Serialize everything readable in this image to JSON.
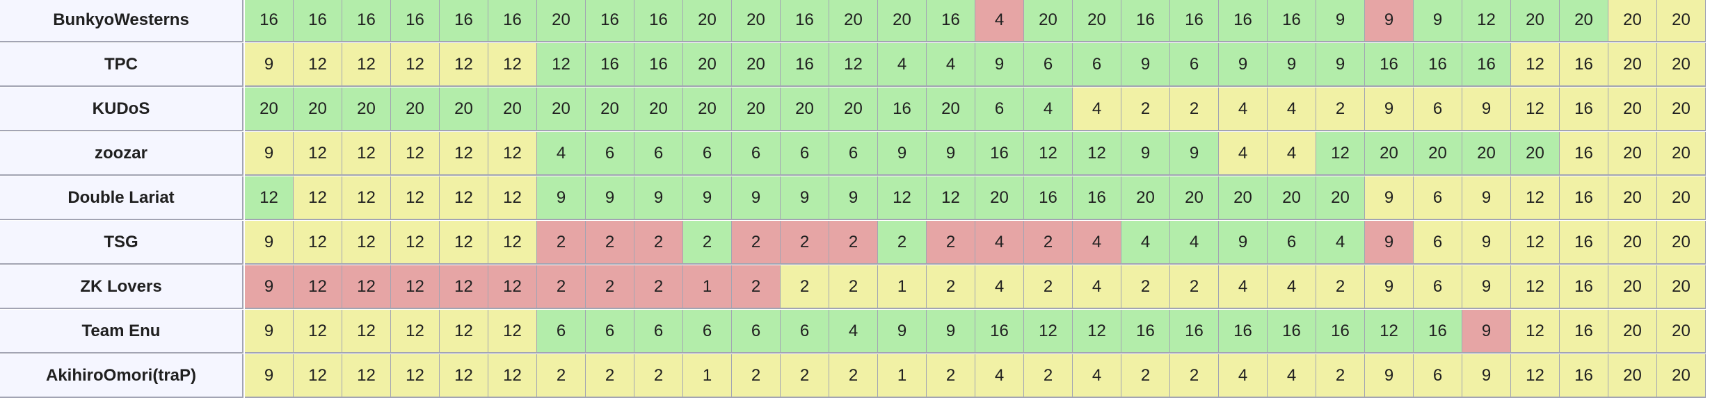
{
  "colors": {
    "green": "#b3edaa",
    "yellow": "#f1f1a5",
    "red": "#e6a5a5",
    "team_bg": "#f5f6ff",
    "border": "#a2a4b3"
  },
  "rows": [
    {
      "team": "BunkyoWesterns",
      "values": [
        "16",
        "16",
        "16",
        "16",
        "16",
        "16",
        "20",
        "16",
        "16",
        "20",
        "20",
        "16",
        "20",
        "20",
        "16",
        "4",
        "20",
        "20",
        "16",
        "16",
        "16",
        "16",
        "9",
        "9",
        "9",
        "12",
        "20",
        "20",
        "20",
        "20"
      ],
      "states": [
        "g",
        "g",
        "g",
        "g",
        "g",
        "g",
        "g",
        "g",
        "g",
        "g",
        "g",
        "g",
        "g",
        "g",
        "g",
        "r",
        "g",
        "g",
        "g",
        "g",
        "g",
        "g",
        "g",
        "r",
        "g",
        "g",
        "g",
        "g",
        "y",
        "y"
      ]
    },
    {
      "team": "TPC",
      "values": [
        "9",
        "12",
        "12",
        "12",
        "12",
        "12",
        "12",
        "16",
        "16",
        "20",
        "20",
        "16",
        "12",
        "4",
        "4",
        "9",
        "6",
        "6",
        "9",
        "6",
        "9",
        "9",
        "9",
        "16",
        "16",
        "16",
        "12",
        "16",
        "20",
        "20"
      ],
      "states": [
        "y",
        "y",
        "y",
        "y",
        "y",
        "y",
        "g",
        "g",
        "g",
        "g",
        "g",
        "g",
        "g",
        "g",
        "g",
        "g",
        "g",
        "g",
        "g",
        "g",
        "g",
        "g",
        "g",
        "g",
        "g",
        "g",
        "y",
        "y",
        "y",
        "y"
      ]
    },
    {
      "team": "KUDoS",
      "values": [
        "20",
        "20",
        "20",
        "20",
        "20",
        "20",
        "20",
        "20",
        "20",
        "20",
        "20",
        "20",
        "20",
        "16",
        "20",
        "6",
        "4",
        "4",
        "2",
        "2",
        "4",
        "4",
        "2",
        "9",
        "6",
        "9",
        "12",
        "16",
        "20",
        "20"
      ],
      "states": [
        "g",
        "g",
        "g",
        "g",
        "g",
        "g",
        "g",
        "g",
        "g",
        "g",
        "g",
        "g",
        "g",
        "g",
        "g",
        "g",
        "g",
        "y",
        "y",
        "y",
        "y",
        "y",
        "y",
        "y",
        "y",
        "y",
        "y",
        "y",
        "y",
        "y"
      ]
    },
    {
      "team": "zoozar",
      "values": [
        "9",
        "12",
        "12",
        "12",
        "12",
        "12",
        "4",
        "6",
        "6",
        "6",
        "6",
        "6",
        "6",
        "9",
        "9",
        "16",
        "12",
        "12",
        "9",
        "9",
        "4",
        "4",
        "12",
        "20",
        "20",
        "20",
        "20",
        "16",
        "20",
        "20"
      ],
      "states": [
        "y",
        "y",
        "y",
        "y",
        "y",
        "y",
        "g",
        "g",
        "g",
        "g",
        "g",
        "g",
        "g",
        "g",
        "g",
        "g",
        "g",
        "g",
        "g",
        "g",
        "y",
        "y",
        "g",
        "g",
        "g",
        "g",
        "g",
        "y",
        "y",
        "y"
      ]
    },
    {
      "team": "Double Lariat",
      "values": [
        "12",
        "12",
        "12",
        "12",
        "12",
        "12",
        "9",
        "9",
        "9",
        "9",
        "9",
        "9",
        "9",
        "12",
        "12",
        "20",
        "16",
        "16",
        "20",
        "20",
        "20",
        "20",
        "20",
        "9",
        "6",
        "9",
        "12",
        "16",
        "20",
        "20"
      ],
      "states": [
        "g",
        "y",
        "y",
        "y",
        "y",
        "y",
        "g",
        "g",
        "g",
        "g",
        "g",
        "g",
        "g",
        "g",
        "g",
        "g",
        "g",
        "g",
        "g",
        "g",
        "g",
        "g",
        "g",
        "y",
        "y",
        "y",
        "y",
        "y",
        "y",
        "y"
      ]
    },
    {
      "team": "TSG",
      "values": [
        "9",
        "12",
        "12",
        "12",
        "12",
        "12",
        "2",
        "2",
        "2",
        "2",
        "2",
        "2",
        "2",
        "2",
        "2",
        "4",
        "2",
        "4",
        "4",
        "4",
        "9",
        "6",
        "4",
        "9",
        "6",
        "9",
        "12",
        "16",
        "20",
        "20"
      ],
      "states": [
        "y",
        "y",
        "y",
        "y",
        "y",
        "y",
        "r",
        "r",
        "r",
        "g",
        "r",
        "r",
        "r",
        "g",
        "r",
        "r",
        "r",
        "r",
        "g",
        "g",
        "g",
        "g",
        "g",
        "r",
        "y",
        "y",
        "y",
        "y",
        "y",
        "y"
      ]
    },
    {
      "team": "ZK Lovers",
      "values": [
        "9",
        "12",
        "12",
        "12",
        "12",
        "12",
        "2",
        "2",
        "2",
        "1",
        "2",
        "2",
        "2",
        "1",
        "2",
        "4",
        "2",
        "4",
        "2",
        "2",
        "4",
        "4",
        "2",
        "9",
        "6",
        "9",
        "12",
        "16",
        "20",
        "20"
      ],
      "states": [
        "r",
        "r",
        "r",
        "r",
        "r",
        "r",
        "r",
        "r",
        "r",
        "r",
        "r",
        "y",
        "y",
        "y",
        "y",
        "y",
        "y",
        "y",
        "y",
        "y",
        "y",
        "y",
        "y",
        "y",
        "y",
        "y",
        "y",
        "y",
        "y",
        "y"
      ]
    },
    {
      "team": "Team Enu",
      "values": [
        "9",
        "12",
        "12",
        "12",
        "12",
        "12",
        "6",
        "6",
        "6",
        "6",
        "6",
        "6",
        "4",
        "9",
        "9",
        "16",
        "12",
        "12",
        "16",
        "16",
        "16",
        "16",
        "16",
        "12",
        "16",
        "9",
        "12",
        "16",
        "20",
        "20"
      ],
      "states": [
        "y",
        "y",
        "y",
        "y",
        "y",
        "y",
        "g",
        "g",
        "g",
        "g",
        "g",
        "g",
        "g",
        "g",
        "g",
        "g",
        "g",
        "g",
        "g",
        "g",
        "g",
        "g",
        "g",
        "g",
        "g",
        "r",
        "y",
        "y",
        "y",
        "y"
      ]
    },
    {
      "team": "AkihiroOmori(traP)",
      "values": [
        "9",
        "12",
        "12",
        "12",
        "12",
        "12",
        "2",
        "2",
        "2",
        "1",
        "2",
        "2",
        "2",
        "1",
        "2",
        "4",
        "2",
        "4",
        "2",
        "2",
        "4",
        "4",
        "2",
        "9",
        "6",
        "9",
        "12",
        "16",
        "20",
        "20"
      ],
      "states": [
        "y",
        "y",
        "y",
        "y",
        "y",
        "y",
        "y",
        "y",
        "y",
        "y",
        "y",
        "y",
        "y",
        "y",
        "y",
        "y",
        "y",
        "y",
        "y",
        "y",
        "y",
        "y",
        "y",
        "y",
        "y",
        "y",
        "y",
        "y",
        "y",
        "y"
      ]
    }
  ]
}
